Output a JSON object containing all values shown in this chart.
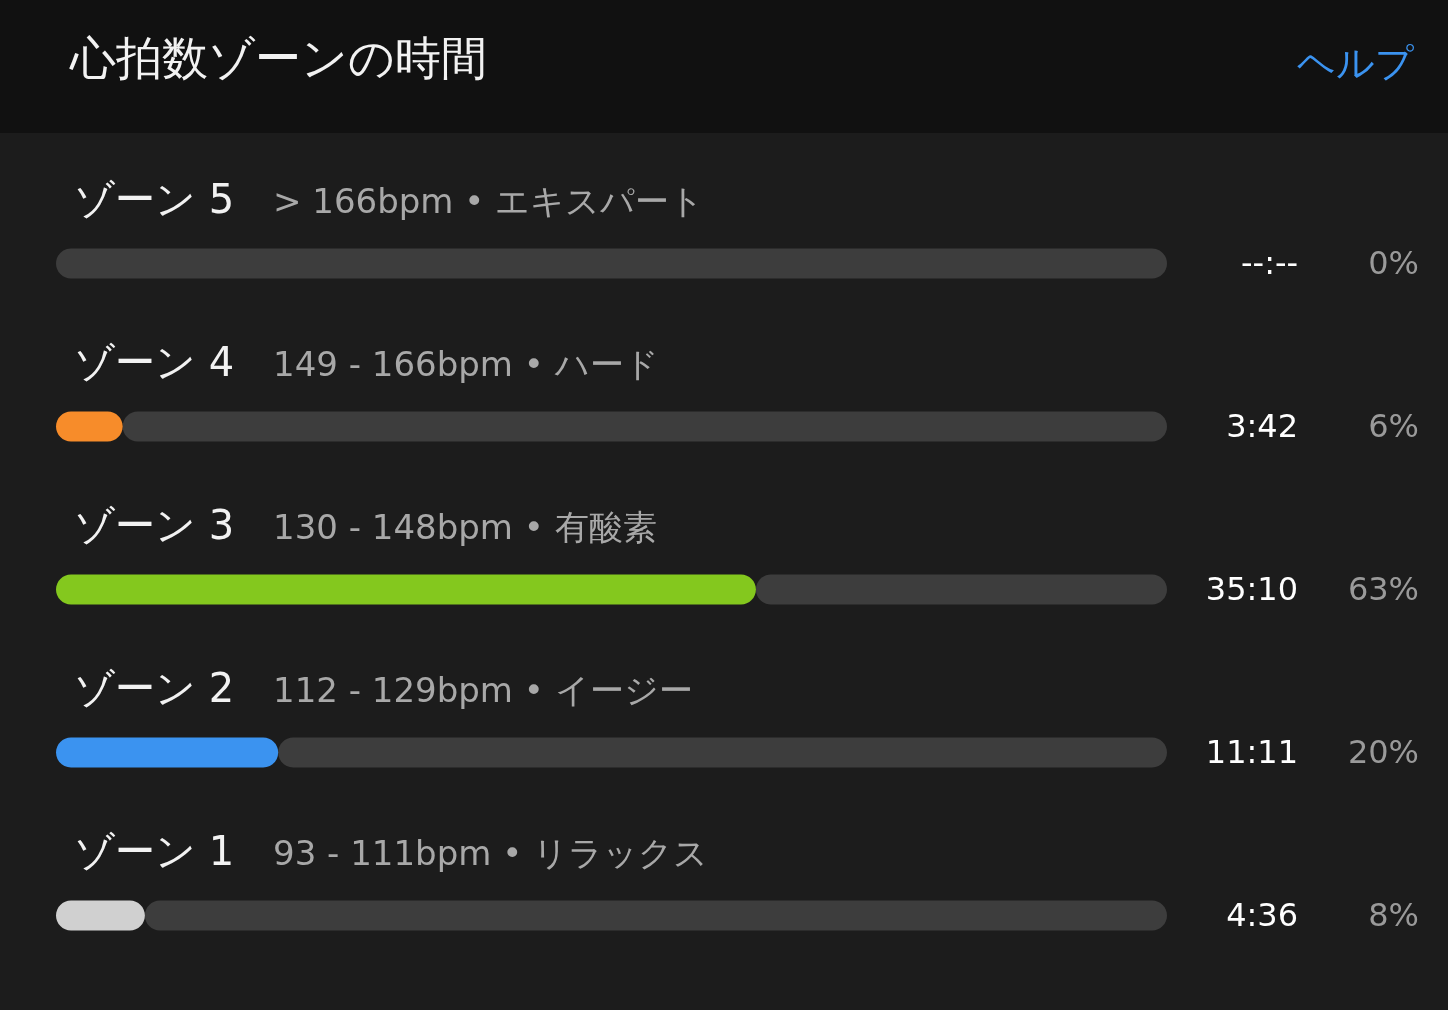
{
  "chart_data": {
    "type": "bar",
    "orientation": "horizontal",
    "title": "心拍数ゾーンの時間",
    "categories": [
      "ゾーン 5",
      "ゾーン 4",
      "ゾーン 3",
      "ゾーン 2",
      "ゾーン 1"
    ],
    "stacked": true,
    "series": [
      {
        "colors": [
          "#3d3d3d",
          "#f78c2a",
          "#84c81e",
          "#3b93f0",
          "#d0d0d0"
        ],
        "values": [
          0,
          6,
          63,
          20,
          8
        ],
        "value_labels": [
          "0%",
          "6%",
          "63%",
          "20%",
          "8%"
        ]
      },
      {
        "color": "#3d3d3d",
        "values": [
          100,
          94,
          37,
          80,
          92
        ]
      }
    ],
    "xlim": [
      0,
      100
    ],
    "tick_labels": false,
    "legend": false,
    "annotations": [
      "ヘルプ",
      "> 166bpm • エキスパート",
      "--:--",
      "149 - 166bpm • ハード",
      "3:42",
      "130 - 148bpm • 有酸素",
      "35:10",
      "112 - 129bpm • イージー",
      "11:11",
      "93 - 111bpm • リラックス",
      "4:36"
    ]
  }
}
